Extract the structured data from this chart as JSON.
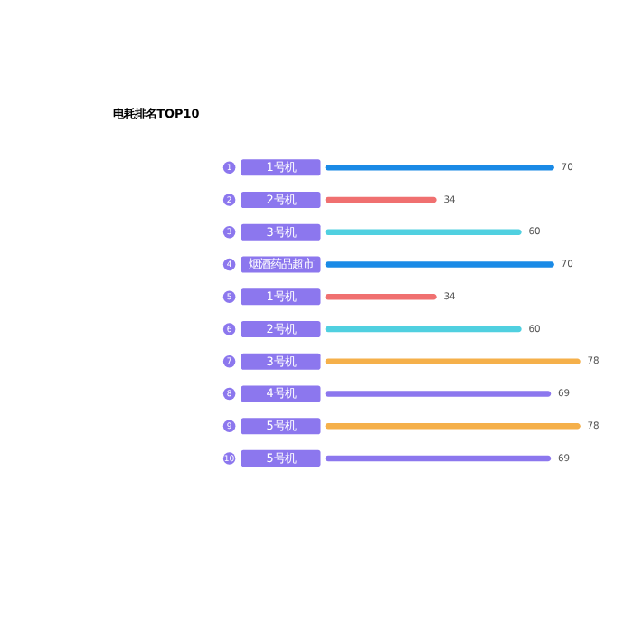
{
  "chart_data": {
    "type": "bar",
    "orientation": "horizontal",
    "title": "电耗排名TOP10",
    "categories": [
      "1号机",
      "2号机",
      "3号机",
      "烟酒药品超市",
      "1号机",
      "2号机",
      "3号机",
      "4号机",
      "5号机",
      "5号机"
    ],
    "values": [
      70,
      34,
      60,
      70,
      34,
      60,
      78,
      69,
      78,
      69
    ],
    "colors": [
      "#1a8ae6",
      "#f07070",
      "#50d0e0",
      "#1a8ae6",
      "#f07070",
      "#50d0e0",
      "#f5b04a",
      "#8c77ee",
      "#f5b04a",
      "#8c77ee"
    ],
    "annotations": [
      "1",
      "2",
      "3",
      "4",
      "5",
      "6",
      "7",
      "8",
      "9",
      "10"
    ],
    "data_labels": true
  }
}
